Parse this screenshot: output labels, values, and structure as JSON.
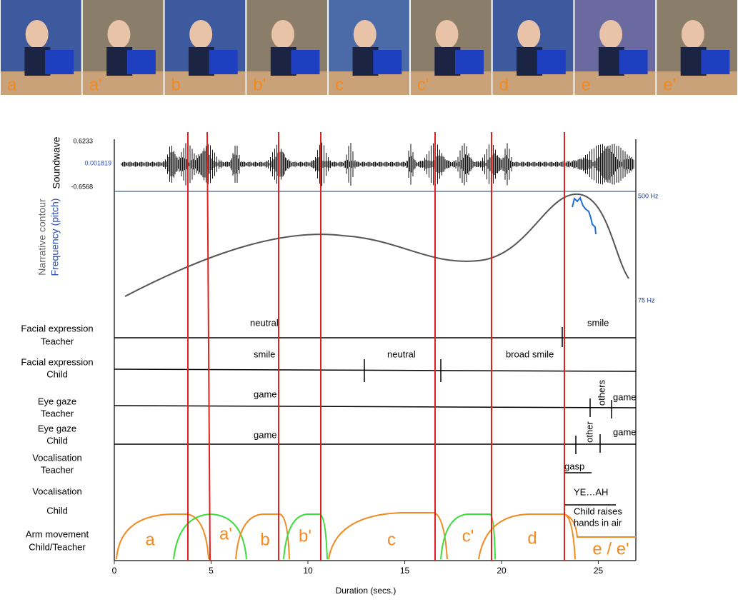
{
  "frames": [
    {
      "label": "a"
    },
    {
      "label": "a'"
    },
    {
      "label": "b"
    },
    {
      "label": "b'"
    },
    {
      "label": "c"
    },
    {
      "label": "c'"
    },
    {
      "label": "d"
    },
    {
      "label": "e"
    },
    {
      "label": "e'"
    }
  ],
  "soundwave": {
    "title": "Soundwave",
    "max": "0.6233",
    "mid": "0.001819",
    "min": "-0.6568"
  },
  "pitch": {
    "title": "Narrative contour",
    "subtitle": "Frequency (pitch)",
    "top": "500 Hz",
    "bottom": "75 Hz"
  },
  "rows": [
    {
      "label": [
        "Facial expression",
        "Teacher"
      ],
      "annotations": [
        "neutral",
        "smile"
      ]
    },
    {
      "label": [
        "Facial expression",
        "Child"
      ],
      "annotations": [
        "smile",
        "neutral",
        "broad smile"
      ]
    },
    {
      "label": [
        "Eye gaze",
        "Teacher"
      ],
      "annotations": [
        "game",
        "others",
        "game"
      ]
    },
    {
      "label": [
        "Eye gaze",
        "Child"
      ],
      "annotations": [
        "game",
        "other",
        "game"
      ]
    },
    {
      "label": [
        "Vocalisation",
        "Teacher"
      ],
      "annotations": [
        "gasp"
      ]
    },
    {
      "label": [
        "Vocalisation",
        "Child"
      ],
      "annotations": [
        "YE…AH",
        "Child raises",
        "hands in air"
      ]
    },
    {
      "label": [
        "Arm movement",
        "Child/Teacher"
      ],
      "annotations": [
        "a",
        "a'",
        "b",
        "b'",
        "c",
        "c'",
        "d",
        "e / e'"
      ]
    }
  ],
  "x_axis": {
    "title": "Duration (secs.)",
    "ticks": [
      0,
      5,
      10,
      15,
      20,
      25
    ]
  }
}
